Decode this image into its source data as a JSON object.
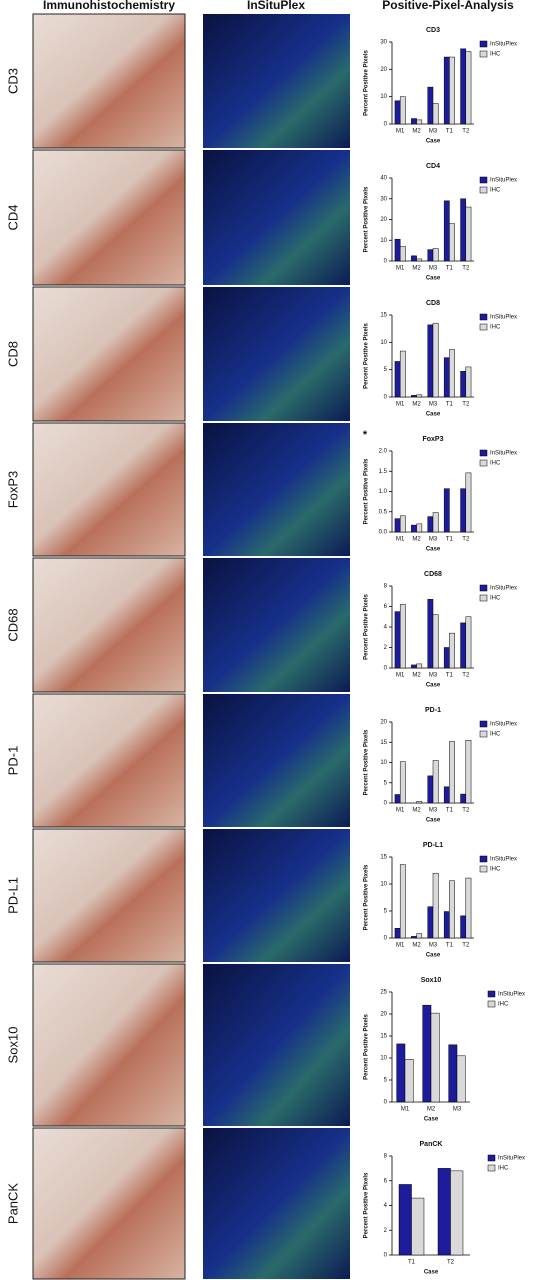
{
  "columns": [
    "Immunohistochemistry",
    "InSituPlex",
    "Positive-Pixel-Analysis"
  ],
  "chart_data": [
    {
      "type": "bar",
      "title": "CD3",
      "ylabel": "Percent Positive Pixels",
      "xlabel": "Case",
      "categories": [
        "M1",
        "M2",
        "M3",
        "T1",
        "T2"
      ],
      "ylim": [
        0,
        30
      ],
      "yticks": [
        0,
        10,
        20,
        30
      ],
      "series": [
        {
          "name": "InSituPlex",
          "color": "#1c1c9c",
          "values": [
            8.5,
            2,
            13.5,
            24.5,
            27.5
          ]
        },
        {
          "name": "IHC",
          "color": "#d9d9d9",
          "values": [
            10,
            1.5,
            7.5,
            24.5,
            26.5
          ]
        }
      ]
    },
    {
      "type": "bar",
      "title": "CD4",
      "ylabel": "Percent Positive Pixels",
      "xlabel": "Case",
      "categories": [
        "M1",
        "M2",
        "M3",
        "T1",
        "T2"
      ],
      "ylim": [
        0,
        40
      ],
      "yticks": [
        0,
        10,
        20,
        30,
        40
      ],
      "series": [
        {
          "name": "InSituPlex",
          "color": "#1c1c9c",
          "values": [
            10.5,
            2.5,
            5.5,
            29,
            30
          ]
        },
        {
          "name": "IHC",
          "color": "#d9d9d9",
          "values": [
            7,
            1,
            6,
            18,
            26
          ]
        }
      ]
    },
    {
      "type": "bar",
      "title": "CD8",
      "ylabel": "Percent Positive Pixels",
      "xlabel": "Case",
      "categories": [
        "M1",
        "M2",
        "M3",
        "T1",
        "T2"
      ],
      "ylim": [
        0,
        15
      ],
      "yticks": [
        0,
        5,
        10,
        15
      ],
      "series": [
        {
          "name": "InSituPlex",
          "color": "#1c1c9c",
          "values": [
            6.5,
            0.3,
            13.2,
            7.2,
            4.7
          ]
        },
        {
          "name": "IHC",
          "color": "#d9d9d9",
          "values": [
            8.4,
            0.4,
            13.5,
            8.7,
            5.5
          ]
        }
      ]
    },
    {
      "type": "bar",
      "title": "FoxP3",
      "annotation": "*",
      "ylabel": "Percent Positive Pixels",
      "xlabel": "Case",
      "categories": [
        "M1",
        "M2",
        "M3",
        "T1",
        "T2"
      ],
      "ylim": [
        0,
        2
      ],
      "yticks": [
        {
          "value": 0,
          "label": "0.0"
        },
        0.5,
        {
          "value": 1,
          "label": "1.0"
        },
        1.5,
        {
          "value": 2,
          "label": "2.0"
        }
      ],
      "series": [
        {
          "name": "InSituPlex",
          "color": "#1c1c9c",
          "values": [
            0.33,
            0.17,
            0.38,
            1.07,
            1.07
          ]
        },
        {
          "name": "IHC",
          "color": "#d9d9d9",
          "values": [
            0.4,
            0.2,
            0.48,
            0,
            1.46
          ]
        }
      ]
    },
    {
      "type": "bar",
      "title": "CD68",
      "ylabel": "Percent Positive Pixels",
      "xlabel": "Case",
      "categories": [
        "M1",
        "M2",
        "M3",
        "T1",
        "T2"
      ],
      "ylim": [
        0,
        8
      ],
      "yticks": [
        0,
        2,
        4,
        6,
        8
      ],
      "series": [
        {
          "name": "InSituPlex",
          "color": "#1c1c9c",
          "values": [
            5.5,
            0.3,
            6.7,
            2.0,
            4.4
          ]
        },
        {
          "name": "IHC",
          "color": "#d9d9d9",
          "values": [
            6.2,
            0.4,
            5.2,
            3.4,
            5.0
          ]
        }
      ]
    },
    {
      "type": "bar",
      "title": "PD-1",
      "ylabel": "Percent Positive Pixels",
      "xlabel": "Case",
      "categories": [
        "M1",
        "M2",
        "M3",
        "T1",
        "T2"
      ],
      "ylim": [
        0,
        20
      ],
      "yticks": [
        0,
        5,
        10,
        15,
        20
      ],
      "series": [
        {
          "name": "InSituPlex",
          "color": "#1c1c9c",
          "values": [
            2.1,
            0,
            6.7,
            4.0,
            2.2
          ]
        },
        {
          "name": "IHC",
          "color": "#d9d9d9",
          "values": [
            10.2,
            0.4,
            10.5,
            15.2,
            15.5
          ]
        }
      ]
    },
    {
      "type": "bar",
      "title": "PD-L1",
      "ylabel": "Percent Positive Pixels",
      "xlabel": "Case",
      "categories": [
        "M1",
        "M2",
        "M3",
        "T1",
        "T2"
      ],
      "ylim": [
        0,
        15
      ],
      "yticks": [
        0,
        5,
        10,
        15
      ],
      "series": [
        {
          "name": "InSituPlex",
          "color": "#1c1c9c",
          "values": [
            1.8,
            0.3,
            5.8,
            4.9,
            4.1
          ]
        },
        {
          "name": "IHC",
          "color": "#d9d9d9",
          "values": [
            13.6,
            0.8,
            12,
            10.6,
            11.1
          ]
        }
      ]
    },
    {
      "type": "bar",
      "title": "Sox10",
      "ylabel": "Percent Positive Pixels",
      "xlabel": "Case",
      "categories": [
        "M1",
        "M2",
        "M3"
      ],
      "ylim": [
        0,
        25
      ],
      "yticks": [
        0,
        5,
        10,
        15,
        20,
        25
      ],
      "series": [
        {
          "name": "InSituPlex",
          "color": "#1c1c9c",
          "values": [
            13.2,
            22,
            13
          ]
        },
        {
          "name": "IHC",
          "color": "#d9d9d9",
          "values": [
            9.7,
            20.2,
            10.5
          ]
        }
      ]
    },
    {
      "type": "bar",
      "title": "PanCK",
      "ylabel": "Percent Positive Pixels",
      "xlabel": "Case",
      "categories": [
        "T1",
        "T2"
      ],
      "ylim": [
        0,
        8
      ],
      "yticks": [
        0,
        2,
        4,
        6,
        8
      ],
      "series": [
        {
          "name": "InSituPlex",
          "color": "#1c1c9c",
          "values": [
            5.7,
            7.0
          ]
        },
        {
          "name": "IHC",
          "color": "#d9d9d9",
          "values": [
            4.6,
            6.8
          ]
        }
      ]
    }
  ]
}
